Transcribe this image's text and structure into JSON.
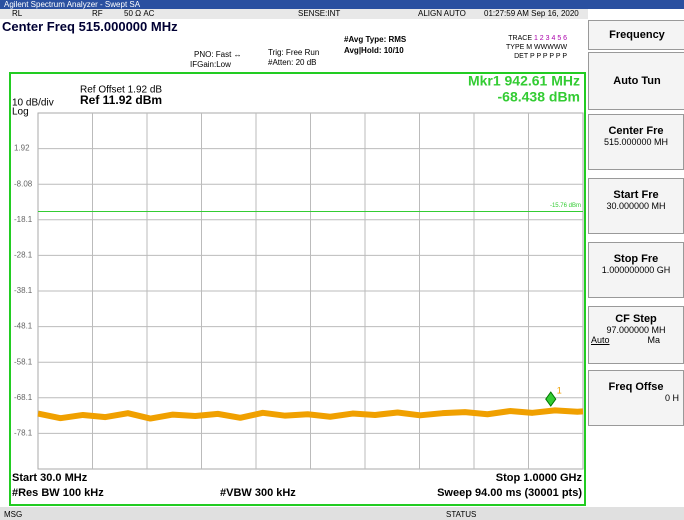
{
  "window": {
    "title": "Agilent Spectrum Analyzer - Swept SA"
  },
  "status_bar": {
    "rl": "RL",
    "rf": "RF",
    "impedance": "50 Ω  AC",
    "sense": "SENSE:INT",
    "align": "ALIGN AUTO",
    "time": "01:27:59 AM Sep 16, 2020"
  },
  "settings": {
    "center": "Center Freq 515.000000 MHz",
    "pno": "PNO: Fast  ↔",
    "ifgain": "IFGain:Low",
    "trig": "Trig: Free Run",
    "atten": "#Atten: 20 dB",
    "avg_type": "#Avg Type: RMS",
    "avg_hold": "Avg|Hold: 10/10",
    "trace_label": "TRACE",
    "trace_nums": "1 2 3 4 5 6",
    "type_label": "TYPE",
    "type_vals": "M WWWWW",
    "det_label": "DET",
    "det_vals": "P P P P P P"
  },
  "plot": {
    "scale": "10 dB/div",
    "log": "Log",
    "ref_offset": "Ref Offset 1.92 dB",
    "ref": "Ref 11.92 dBm",
    "marker_line1": "Mkr1 942.61 MHz",
    "marker_line2": "-68.438 dBm",
    "marker_id": "1",
    "xlim": [
      30,
      1000
    ],
    "ylim": [
      -88.08,
      11.92
    ],
    "yticks": [
      1.92,
      -8.08,
      {
        "value": -18.08,
        "label": "-18.1"
      },
      {
        "value": -28.08,
        "label": "-28.1"
      },
      {
        "value": -38.08,
        "label": "-38.1"
      },
      {
        "value": -48.08,
        "label": "-48.1"
      },
      {
        "value": -58.08,
        "label": "-58.1"
      },
      {
        "value": -68.08,
        "label": "-68.1"
      },
      {
        "value": -78.08,
        "label": "-78.1"
      }
    ],
    "threshold": -15.76,
    "threshold_label": "-15.76 dBm",
    "trace": {
      "color": "#f0a000",
      "x": [
        30,
        70,
        110,
        150,
        190,
        230,
        270,
        310,
        350,
        390,
        430,
        470,
        510,
        550,
        590,
        630,
        670,
        710,
        750,
        790,
        830,
        870,
        910,
        950,
        990,
        1000
      ],
      "values": [
        -72.5,
        -73.8,
        -72.9,
        -73.5,
        -72.4,
        -73.9,
        -72.8,
        -73.2,
        -72.6,
        -73.7,
        -72.3,
        -73.1,
        -72.7,
        -73.4,
        -72.5,
        -72.9,
        -72.2,
        -73.0,
        -72.4,
        -72.1,
        -72.7,
        -71.8,
        -72.3,
        -71.6,
        -72.0,
        -71.9
      ]
    },
    "marker": {
      "x": 942.61,
      "y": -68.438
    },
    "start": "Start 30.0 MHz",
    "stop": "Stop 1.0000 GHz",
    "rbw": "#Res BW 100 kHz",
    "vbw": "#VBW 300 kHz",
    "sweep": "Sweep  94.00 ms (30001 pts)"
  },
  "footer": {
    "msg": "MSG",
    "status": "STATUS"
  },
  "softkeys": {
    "menu": "Frequency",
    "auto_tune": "Auto Tun",
    "center": "Center Fre",
    "center_val": "515.000000 MH",
    "start": "Start Fre",
    "start_val": "30.000000 MH",
    "stop": "Stop Fre",
    "stop_val": "1.000000000 GH",
    "cf_step": "CF Step",
    "cf_step_val": "97.000000 MH",
    "auto": "Auto",
    "man": "Ma",
    "offset": "Freq Offse",
    "offset_val": "0 H"
  }
}
